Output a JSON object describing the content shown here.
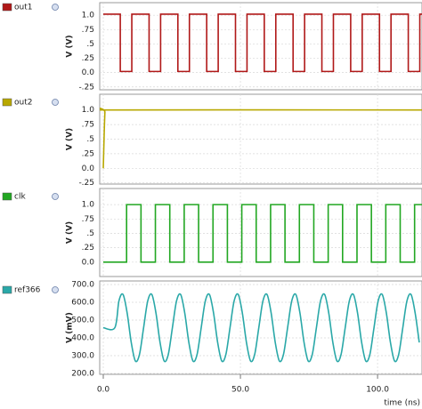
{
  "chart_data": [
    {
      "type": "line",
      "ylabel": "V (V)",
      "ylim": [
        -0.3,
        1.22
      ],
      "yticks": [
        {
          "value": -0.25,
          "label": "-.25"
        },
        {
          "value": 0,
          "label": "0.0"
        },
        {
          "value": 0.25,
          "label": ".25"
        },
        {
          "value": 0.5,
          "label": ".5"
        },
        {
          "value": 0.75,
          "label": ".75"
        },
        {
          "value": 1,
          "label": "1.0"
        }
      ],
      "series": [
        {
          "name": "out1",
          "color": "#b01818",
          "x": [
            0,
            6.2,
            6.2,
            10.4,
            10.4,
            16.7,
            16.7,
            20.9,
            20.9,
            27.2,
            27.2,
            31.4,
            31.4,
            37.7,
            37.7,
            41.9,
            41.9,
            48.2,
            48.2,
            52.4,
            52.4,
            58.7,
            58.7,
            62.9,
            62.9,
            69.2,
            69.2,
            73.4,
            73.4,
            79.7,
            79.7,
            83.9,
            83.9,
            90.2,
            90.2,
            94.4,
            94.4,
            100.7,
            100.7,
            104.9,
            104.9,
            111.2,
            111.2,
            115.4,
            115.4,
            116.2
          ],
          "values": [
            1.02,
            1.02,
            0.02,
            0.02,
            1.02,
            1.02,
            0.02,
            0.02,
            1.02,
            1.02,
            0.02,
            0.02,
            1.02,
            1.02,
            0.02,
            0.02,
            1.02,
            1.02,
            0.02,
            0.02,
            1.02,
            1.02,
            0.02,
            0.02,
            1.02,
            1.02,
            0.02,
            0.02,
            1.02,
            1.02,
            0.02,
            0.02,
            1.02,
            1.02,
            0.02,
            0.02,
            1.02,
            1.02,
            0.02,
            0.02,
            1.02,
            1.02,
            0.02,
            0.02,
            1.02,
            1.02
          ]
        }
      ]
    },
    {
      "type": "line",
      "ylabel": "V (V)",
      "ylim": [
        -0.27,
        1.27
      ],
      "yticks": [
        {
          "value": -0.25,
          "label": "-.25"
        },
        {
          "value": 0,
          "label": "0.0"
        },
        {
          "value": 0.25,
          "label": ".25"
        },
        {
          "value": 0.5,
          "label": ".5"
        },
        {
          "value": 0.75,
          "label": ".75"
        },
        {
          "value": 1,
          "label": "1.0"
        }
      ],
      "series": [
        {
          "name": "out2",
          "color": "#b8a800",
          "x": [
            0,
            0.6,
            1.2,
            116.2
          ],
          "values": [
            0,
            0.96,
            1.0,
            1.0
          ]
        }
      ]
    },
    {
      "type": "line",
      "ylabel": "V (V)",
      "ylim": [
        -0.25,
        1.28
      ],
      "yticks": [
        {
          "value": 0,
          "label": "0.0"
        },
        {
          "value": 0.25,
          "label": ".25"
        },
        {
          "value": 0.5,
          "label": ".5"
        },
        {
          "value": 0.75,
          "label": ".75"
        },
        {
          "value": 1,
          "label": "1.0"
        }
      ],
      "series": [
        {
          "name": "clk",
          "color": "#22a722",
          "x": [
            0,
            8.5,
            8.5,
            13.75,
            13.75,
            19,
            19,
            24.25,
            24.25,
            29.5,
            29.5,
            34.75,
            34.75,
            40,
            40,
            45.25,
            45.25,
            50.5,
            50.5,
            55.75,
            55.75,
            61,
            61,
            66.25,
            66.25,
            71.5,
            71.5,
            76.75,
            76.75,
            82,
            82,
            87.25,
            87.25,
            92.5,
            92.5,
            97.75,
            97.75,
            103,
            103,
            108.25,
            108.25,
            113.5,
            113.5,
            116.2
          ],
          "values": [
            0,
            0,
            1,
            1,
            0,
            0,
            1,
            1,
            0,
            0,
            1,
            1,
            0,
            0,
            1,
            1,
            0,
            0,
            1,
            1,
            0,
            0,
            1,
            1,
            0,
            0,
            1,
            1,
            0,
            0,
            1,
            1,
            0,
            0,
            1,
            1,
            0,
            0,
            1,
            1,
            0,
            0,
            1,
            1
          ]
        }
      ]
    },
    {
      "type": "line",
      "ylabel": "V (mV)",
      "xlabel": "time (ns)",
      "ylim": [
        195,
        720
      ],
      "yticks": [
        {
          "value": 200,
          "label": "200.0"
        },
        {
          "value": 300,
          "label": "300.0"
        },
        {
          "value": 400,
          "label": "400.0"
        },
        {
          "value": 500,
          "label": "500.0"
        },
        {
          "value": 600,
          "label": "600.0"
        },
        {
          "value": 700,
          "label": "700.0"
        }
      ],
      "xlim": [
        -1.3,
        116.2
      ],
      "xticks": [
        {
          "value": 0,
          "label": "0.0"
        },
        {
          "value": 50,
          "label": "50.0"
        },
        {
          "value": 100,
          "label": "100.0"
        }
      ],
      "series": [
        {
          "name": "ref366",
          "color": "#2aa8a8",
          "x": [
            0,
            4.2,
            5.7,
            7.2,
            8.7,
            10.2,
            11.7,
            13.2,
            14.7,
            16.2,
            17.7,
            19.2,
            20.7,
            22.2,
            23.7,
            25.2,
            26.7,
            28.2,
            29.7,
            31.2,
            32.7,
            34.2,
            35.7,
            37.2,
            38.7,
            40.2,
            41.7,
            43.2,
            44.7,
            46.2,
            47.7,
            49.2,
            50.7,
            52.2,
            53.7,
            55.2,
            56.7,
            58.2,
            59.7,
            61.2,
            62.7,
            64.2,
            65.7,
            67.2,
            68.7,
            70.2,
            71.7,
            73.2,
            74.7,
            76.2,
            77.7,
            79.2,
            80.7,
            82.2,
            83.7,
            85.2,
            86.7,
            88.2,
            89.7,
            91.2,
            92.7,
            94.2,
            95.7,
            97.2,
            98.7,
            100.2,
            101.7,
            103.2,
            104.7,
            106.2,
            107.7,
            109.2,
            110.7,
            112.2,
            113.7,
            115.2
          ],
          "values": [
            457,
            457,
            607,
            644,
            540,
            374,
            270,
            307,
            457,
            607,
            644,
            540,
            374,
            270,
            307,
            457,
            607,
            644,
            540,
            374,
            270,
            307,
            457,
            607,
            644,
            540,
            374,
            270,
            307,
            457,
            607,
            644,
            540,
            374,
            270,
            307,
            457,
            607,
            644,
            540,
            374,
            270,
            307,
            457,
            607,
            644,
            540,
            374,
            270,
            307,
            457,
            607,
            644,
            540,
            374,
            270,
            307,
            457,
            607,
            644,
            540,
            374,
            270,
            307,
            457,
            607,
            644,
            540,
            374,
            270,
            307,
            457,
            607,
            644,
            540,
            374
          ]
        }
      ]
    }
  ]
}
